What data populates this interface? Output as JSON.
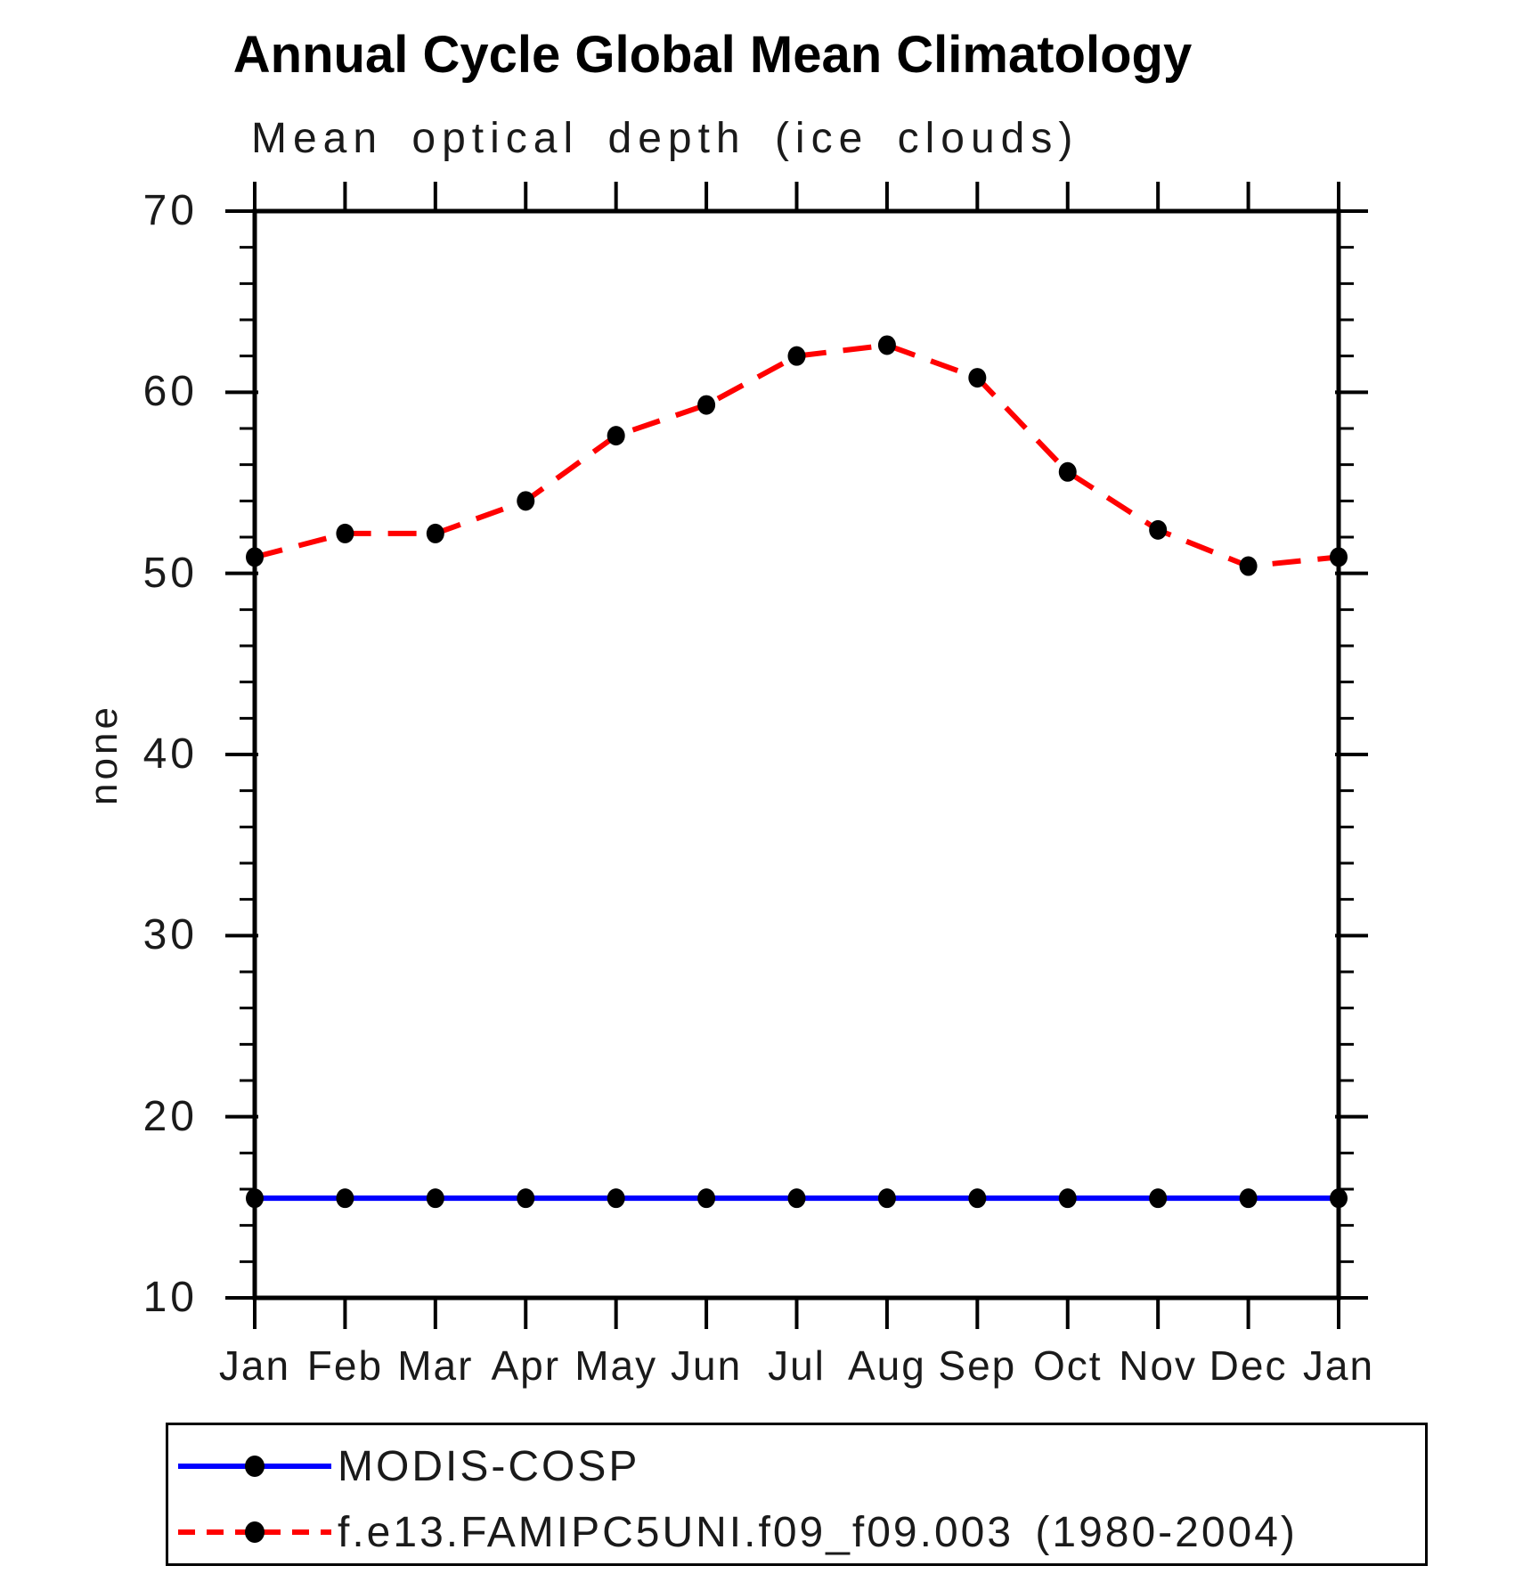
{
  "page": {
    "background": "#ffffff"
  },
  "chart_data": {
    "type": "line",
    "title": "Annual Cycle Global Mean Climatology",
    "subtitle": "Mean optical depth (ice clouds)",
    "ylabel": "none",
    "categories": [
      "Jan",
      "Feb",
      "Mar",
      "Apr",
      "May",
      "Jun",
      "Jul",
      "Aug",
      "Sep",
      "Oct",
      "Nov",
      "Dec",
      "Jan"
    ],
    "ylim": [
      10,
      70
    ],
    "yticks": [
      10,
      20,
      30,
      40,
      50,
      60,
      70
    ],
    "ytick_minor_step": 2,
    "grid": false,
    "legend_position": "bottom",
    "axis_color": "#000000",
    "marker_color": "#000000",
    "series": [
      {
        "name": "MODIS-COSP",
        "color": "#0000ff",
        "line_style": "solid",
        "values": [
          15.5,
          15.5,
          15.5,
          15.5,
          15.5,
          15.5,
          15.5,
          15.5,
          15.5,
          15.5,
          15.5,
          15.5,
          15.5
        ]
      },
      {
        "name": "f.e13.FAMIPC5UNI.f09_f09.003 (1980-2004)",
        "color": "#ff0000",
        "line_style": "dashed",
        "values": [
          50.9,
          52.2,
          52.2,
          54.0,
          57.6,
          59.3,
          62.0,
          62.6,
          60.8,
          55.6,
          52.4,
          50.4,
          50.9
        ]
      }
    ]
  }
}
